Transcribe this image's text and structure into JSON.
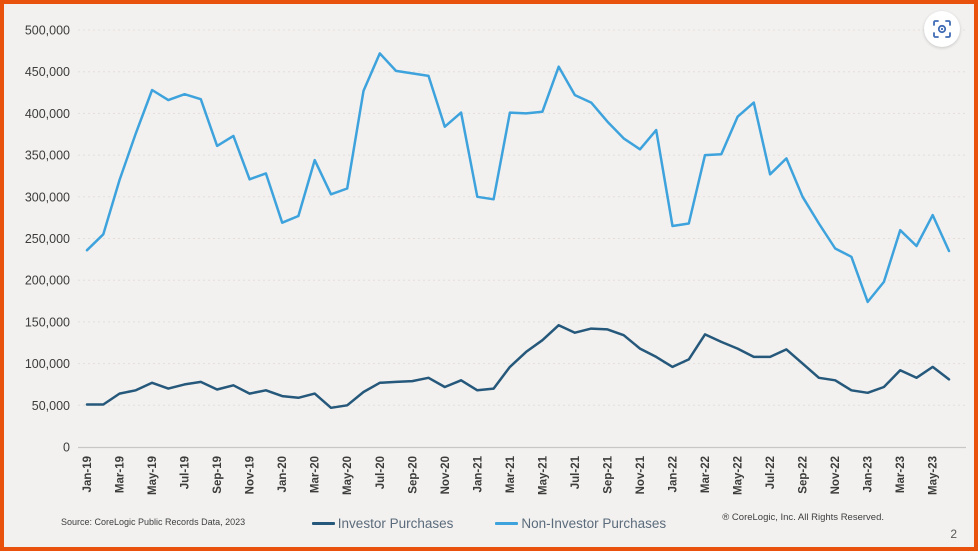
{
  "slide": {
    "source_note": "Source: CoreLogic Public Records Data, 2023",
    "copyright": "® CoreLogic, Inc. All Rights Reserved.",
    "page_number": "2"
  },
  "toolbar": {
    "capture_icon": "screenshot-capture-icon"
  },
  "colors": {
    "border_orange": "#E8520C",
    "background": "#F2F1F0",
    "investor_line": "#25587A",
    "non_investor_line": "#3EA3DC",
    "gridline": "#E4DEDA",
    "axis_line": "#C9C7C5",
    "tick_text": "#3C3C3B",
    "legend_text": "#5B6B7B",
    "capture_icon_blue": "#3F6BB4"
  },
  "chart_data": {
    "type": "line",
    "title": "",
    "xlabel": "",
    "ylabel": "",
    "ylim": [
      0,
      500000
    ],
    "y_tick_interval": 50000,
    "grid": "horizontal-dashed",
    "legend_position": "bottom-center",
    "x_tick_step": 2,
    "x": [
      "Jan-19",
      "Feb-19",
      "Mar-19",
      "Apr-19",
      "May-19",
      "Jun-19",
      "Jul-19",
      "Aug-19",
      "Sep-19",
      "Oct-19",
      "Nov-19",
      "Dec-19",
      "Jan-20",
      "Feb-20",
      "Mar-20",
      "Apr-20",
      "May-20",
      "Jun-20",
      "Jul-20",
      "Aug-20",
      "Sep-20",
      "Oct-20",
      "Nov-20",
      "Dec-20",
      "Jan-21",
      "Feb-21",
      "Mar-21",
      "Apr-21",
      "May-21",
      "Jun-21",
      "Jul-21",
      "Aug-21",
      "Sep-21",
      "Oct-21",
      "Nov-21",
      "Dec-21",
      "Jan-22",
      "Feb-22",
      "Mar-22",
      "Apr-22",
      "May-22",
      "Jun-22",
      "Jul-22",
      "Aug-22",
      "Sep-22",
      "Oct-22",
      "Nov-22",
      "Dec-22",
      "Jan-23",
      "Feb-23",
      "Mar-23",
      "Apr-23",
      "May-23",
      "Jun-23"
    ],
    "series": [
      {
        "name": "Investor Purchases",
        "color": "#25587A",
        "values": [
          51000,
          51000,
          64000,
          68000,
          77000,
          70000,
          75000,
          78000,
          69000,
          74000,
          64000,
          68000,
          61000,
          59000,
          64000,
          47000,
          50000,
          66000,
          77000,
          78000,
          79000,
          83000,
          72000,
          80000,
          68000,
          70000,
          96000,
          114000,
          128000,
          146000,
          137000,
          142000,
          141000,
          134000,
          118000,
          108000,
          96000,
          105000,
          135000,
          126000,
          118000,
          108000,
          108000,
          117000,
          100000,
          83000,
          80000,
          68000,
          65000,
          72000,
          92000,
          83000,
          96000,
          81000
        ]
      },
      {
        "name": "Non-Investor Purchases",
        "color": "#3EA3DC",
        "values": [
          236000,
          255000,
          320000,
          376000,
          428000,
          416000,
          423000,
          417000,
          361000,
          373000,
          321000,
          328000,
          269000,
          277000,
          344000,
          303000,
          310000,
          427000,
          472000,
          451000,
          448000,
          445000,
          384000,
          401000,
          300000,
          297000,
          401000,
          400000,
          402000,
          456000,
          422000,
          413000,
          390000,
          370000,
          357000,
          380000,
          265000,
          268000,
          350000,
          351000,
          396000,
          413000,
          327000,
          346000,
          300000,
          268000,
          238000,
          228000,
          174000,
          198000,
          260000,
          241000,
          278000,
          235000
        ]
      }
    ]
  }
}
